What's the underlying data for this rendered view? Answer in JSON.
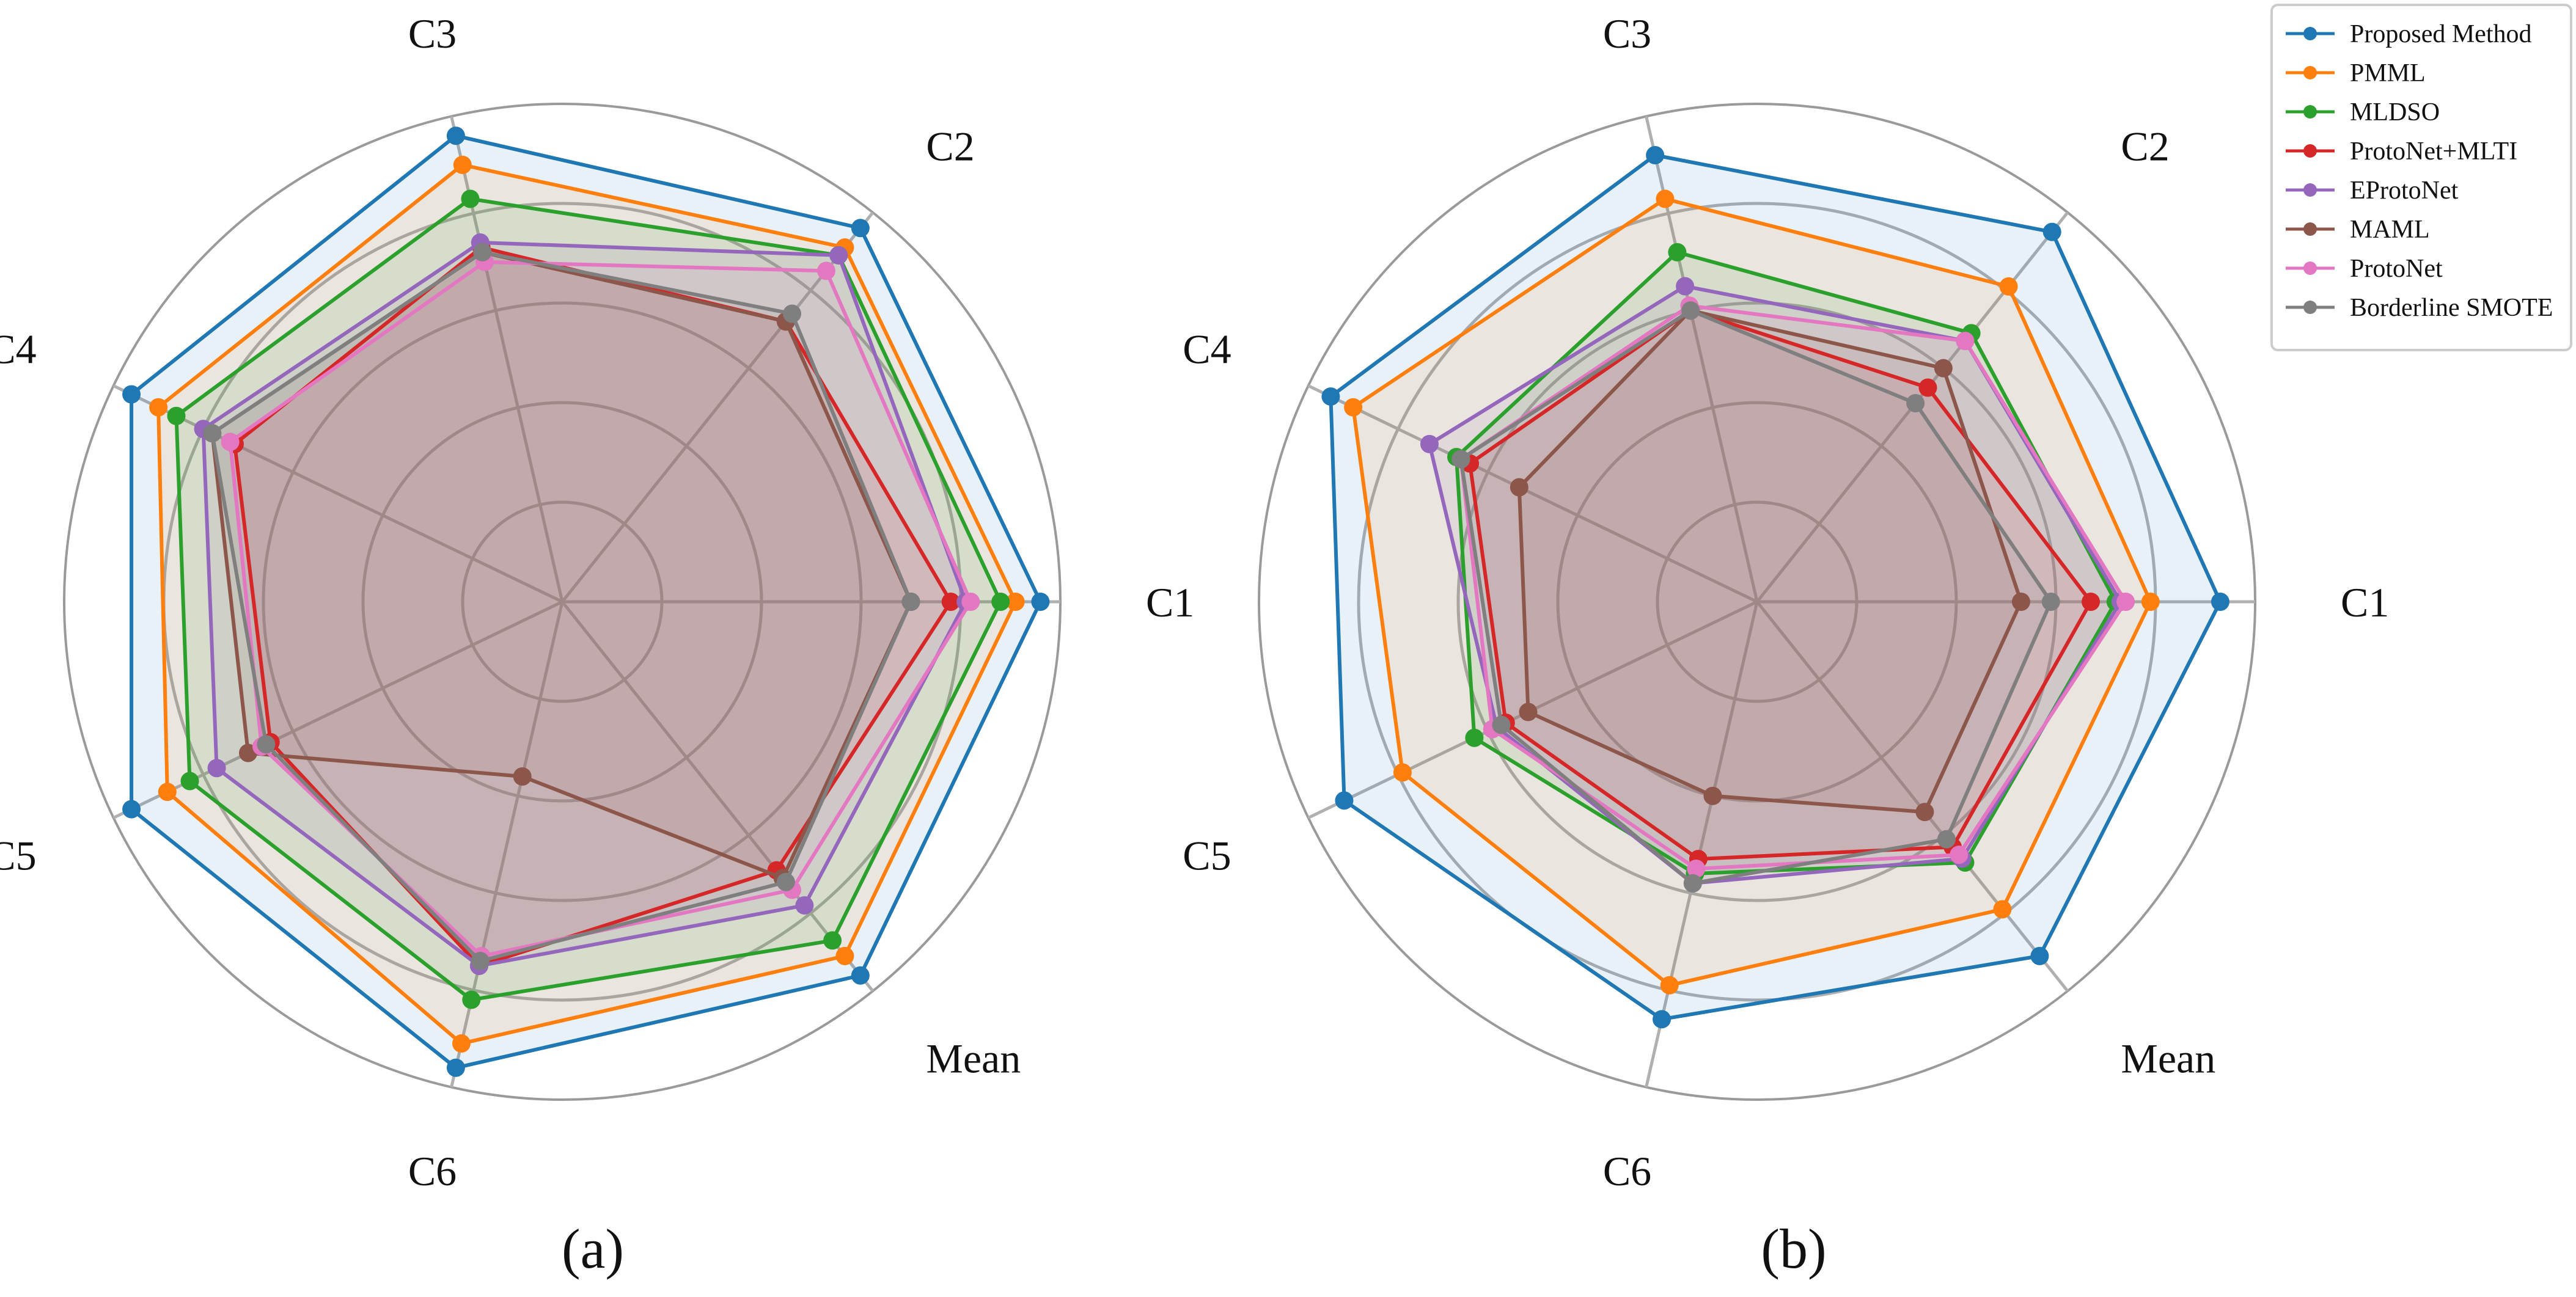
{
  "chart_data": [
    {
      "type": "radar",
      "panel_label": "(a)",
      "axes": [
        "C1",
        "C2",
        "C3",
        "C4",
        "C5",
        "C6",
        "Mean"
      ],
      "rmax": 100,
      "grid": true,
      "series": [
        {
          "name": "Proposed Method",
          "color": "#1f77b4",
          "values": [
            96,
            96,
            96,
            96,
            96,
            96,
            96
          ]
        },
        {
          "name": "PMML",
          "color": "#ff7f0e",
          "values": [
            91,
            91,
            90,
            90,
            88,
            91,
            91
          ]
        },
        {
          "name": "MLDSO",
          "color": "#2ca02c",
          "values": [
            88,
            89,
            83,
            86,
            83,
            82,
            87
          ]
        },
        {
          "name": "ProtoNet+MLTI",
          "color": "#d62728",
          "values": [
            78,
            72,
            73,
            73,
            65,
            75,
            69
          ]
        },
        {
          "name": "EProtoNet",
          "color": "#9467bd",
          "values": [
            81,
            89,
            74,
            80,
            77,
            75,
            78
          ]
        },
        {
          "name": "MAML",
          "color": "#8c564b",
          "values": [
            70,
            72,
            72,
            78,
            70,
            36,
            71
          ]
        },
        {
          "name": "ProtoNet",
          "color": "#e377c2",
          "values": [
            82,
            85,
            70,
            74,
            67,
            73,
            74
          ]
        },
        {
          "name": "Borderline SMOTE",
          "color": "#7f7f7f",
          "values": [
            70,
            74,
            72,
            78,
            66,
            74,
            72
          ]
        }
      ]
    },
    {
      "type": "radar",
      "panel_label": "(b)",
      "axes": [
        "C1",
        "C2",
        "C3",
        "C4",
        "C5",
        "C6",
        "Mean"
      ],
      "rmax": 100,
      "grid": true,
      "series": [
        {
          "name": "Proposed Method",
          "color": "#1f77b4",
          "values": [
            93,
            95,
            92,
            95,
            92,
            86,
            91
          ]
        },
        {
          "name": "PMML",
          "color": "#ff7f0e",
          "values": [
            79,
            81,
            83,
            90,
            79,
            79,
            79
          ]
        },
        {
          "name": "MLDSO",
          "color": "#2ca02c",
          "values": [
            72,
            69,
            72,
            67,
            63,
            56,
            67
          ]
        },
        {
          "name": "ProtoNet+MLTI",
          "color": "#d62728",
          "values": [
            67,
            55,
            60,
            64,
            56,
            53,
            63
          ]
        },
        {
          "name": "EProtoNet",
          "color": "#9467bd",
          "values": [
            73,
            67,
            65,
            73,
            58,
            58,
            66
          ]
        },
        {
          "name": "MAML",
          "color": "#8c564b",
          "values": [
            53,
            60,
            60,
            53,
            51,
            40,
            54
          ]
        },
        {
          "name": "ProtoNet",
          "color": "#e377c2",
          "values": [
            74,
            67,
            61,
            66,
            59,
            55,
            65
          ]
        },
        {
          "name": "Borderline SMOTE",
          "color": "#7f7f7f",
          "values": [
            59,
            51,
            60,
            66,
            57,
            58,
            61
          ]
        }
      ]
    }
  ],
  "legend": {
    "items": [
      {
        "name": "Proposed Method",
        "color": "#1f77b4"
      },
      {
        "name": "PMML",
        "color": "#ff7f0e"
      },
      {
        "name": "MLDSO",
        "color": "#2ca02c"
      },
      {
        "name": "ProtoNet+MLTI",
        "color": "#d62728"
      },
      {
        "name": "EProtoNet",
        "color": "#9467bd"
      },
      {
        "name": "MAML",
        "color": "#8c564b"
      },
      {
        "name": "ProtoNet",
        "color": "#e377c2"
      },
      {
        "name": "Borderline SMOTE",
        "color": "#7f7f7f"
      }
    ]
  },
  "fill_colors": {
    "outer": "#1f77b4",
    "inner": "#8c564b"
  }
}
